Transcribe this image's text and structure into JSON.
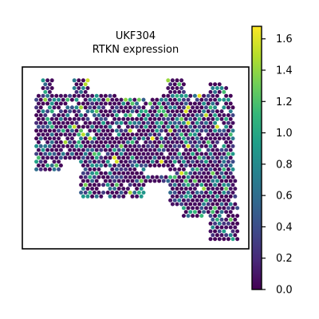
{
  "chart_data": {
    "type": "scatter",
    "title_line1": "UKF304",
    "title_line2": "RTKN expression",
    "colormap": "viridis",
    "colormap_stops": [
      "#440154",
      "#482878",
      "#3e4989",
      "#31688e",
      "#26828e",
      "#1f9e89",
      "#35b779",
      "#6ece58",
      "#b5de2b",
      "#fde725"
    ],
    "value_range": [
      0.0,
      1.68
    ],
    "colorbar": {
      "ticks": [
        0.0,
        0.2,
        0.4,
        0.6,
        0.8,
        1.0,
        1.2,
        1.4,
        1.6
      ],
      "tick_labels": [
        "0.0",
        "0.2",
        "0.4",
        "0.6",
        "0.8",
        "1.0",
        "1.2",
        "1.4",
        "1.6"
      ]
    },
    "axes_visible": false,
    "spots_description": "hexagonal spatial transcriptomics grid, majority near 0 with scattered higher values"
  }
}
